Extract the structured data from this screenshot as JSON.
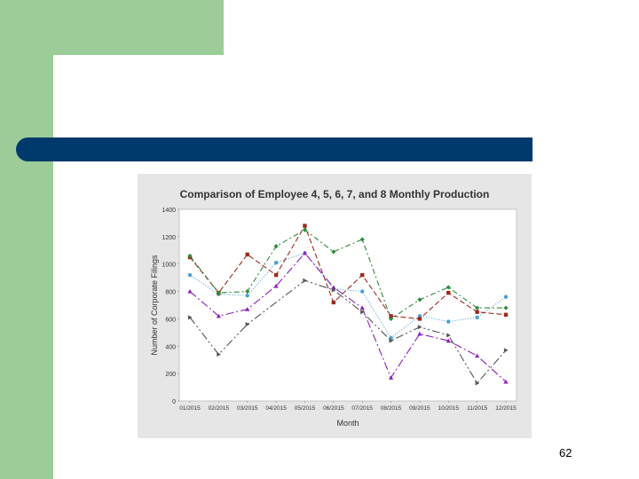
{
  "slide": {
    "page_number": "62"
  },
  "colors": {
    "sidebar_green": "#9ccd98",
    "title_bar_blue": "#003a6c",
    "chart_background": "#e6e6e6",
    "plot_background": "#ffffff"
  },
  "chart_data": {
    "type": "line",
    "title": "Comparison of Employee 4, 5, 6, 7, and 8 Monthly Production",
    "xlabel": "Month",
    "ylabel": "Number of Corporate Filings",
    "categories": [
      "01/2015",
      "02/2015",
      "03/2015",
      "04/2015",
      "05/2015",
      "06/2015",
      "07/2015",
      "08/2015",
      "09/2015",
      "10/2015",
      "11/2015",
      "12/2015"
    ],
    "yticks": [
      "0",
      "200",
      "400",
      "600",
      "800",
      "1000",
      "1200",
      "1400"
    ],
    "ylim": [
      0,
      1400
    ],
    "grid": false,
    "legend": "none",
    "series": [
      {
        "color": "#4a9fd5",
        "dash": "1 2",
        "marker": "circle",
        "values": [
          920,
          780,
          770,
          1010,
          1080,
          820,
          800,
          460,
          620,
          580,
          610,
          760
        ]
      },
      {
        "color": "#9b2b20",
        "dash": "6 3",
        "marker": "square",
        "values": [
          1050,
          790,
          1070,
          920,
          1280,
          720,
          920,
          620,
          600,
          790,
          650,
          630
        ]
      },
      {
        "color": "#2e8b3a",
        "dash": "6 3 2 3",
        "marker": "diamond",
        "values": [
          1060,
          790,
          800,
          1130,
          1250,
          1090,
          1180,
          600,
          740,
          830,
          680,
          680
        ]
      },
      {
        "color": "#8b1fbf",
        "dash": "9 3 2 3",
        "marker": "triangle",
        "values": [
          800,
          620,
          670,
          840,
          1080,
          830,
          680,
          170,
          490,
          440,
          330,
          140
        ]
      },
      {
        "color": "#555555",
        "dash": "9 3 2 3 2 3",
        "marker": "triangle-right",
        "values": [
          610,
          340,
          560,
          null,
          880,
          810,
          650,
          440,
          540,
          480,
          130,
          370
        ]
      }
    ]
  }
}
